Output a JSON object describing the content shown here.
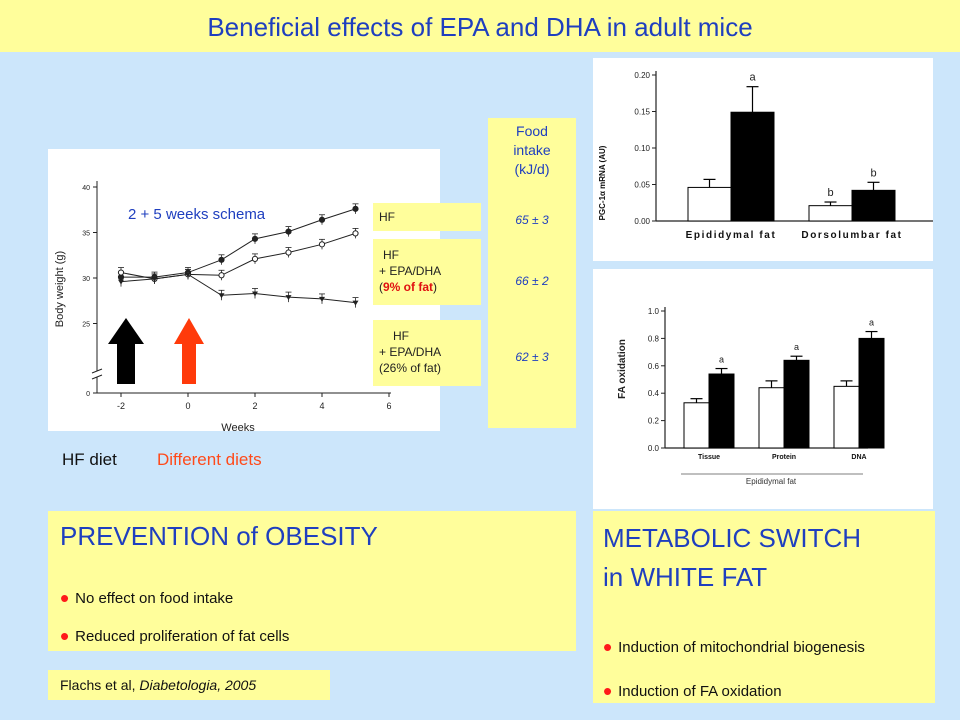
{
  "title": "Beneficial effects of  EPA and DHA in adult mice",
  "weight_chart": {
    "schema_label": "2 + 5 weeks schema",
    "ylabel": "Body weight (g)",
    "xlabel": "Weeks",
    "yticks": [
      "40",
      "35",
      "30",
      "25",
      "0"
    ],
    "xticks": [
      "-2",
      "0",
      "2",
      "4",
      "6"
    ]
  },
  "groups": {
    "hf": "HF",
    "epa9_hf": "HF",
    "epa9_line": "+ EPA/DHA",
    "epa9_pct": "9% of fat",
    "epa26_hf": "HF",
    "epa26_line": "+ EPA/DHA",
    "epa26_pct": "(26% of fat)"
  },
  "food": {
    "label1": "Food",
    "label2": "intake",
    "label3": "(kJ/d)",
    "v1": "65 ± 3",
    "v2": "66 ± 2",
    "v3": "62 ± 3"
  },
  "arrows": {
    "hf_diet": "HF diet",
    "different_diets": "Different diets"
  },
  "pgc_chart": {
    "ylabel": "PGC-1α mRNA (AU)",
    "yticks": [
      "0.20",
      "0.15",
      "0.10",
      "0.05",
      "0.00"
    ],
    "xlabels": [
      "Epididymal fat",
      "Dorsolumbar fat"
    ],
    "sig": [
      "a",
      "b",
      "b"
    ]
  },
  "fa_chart": {
    "ylabel": "FA oxidation",
    "yticks": [
      "1.0",
      "0.8",
      "0.6",
      "0.4",
      "0.2",
      "0.0"
    ],
    "xlabels": [
      "Tissue",
      "Protein",
      "DNA"
    ],
    "sig": [
      "a",
      "a",
      "a"
    ],
    "group_label": "Epididymal fat"
  },
  "prevention": {
    "title": "PREVENTION of OBESITY",
    "b1": "No effect on food intake",
    "b2": "Reduced proliferation of fat cells"
  },
  "metabolic": {
    "title1": "METABOLIC SWITCH",
    "title2": "in WHITE FAT",
    "b1": "Induction of mitochondrial biogenesis",
    "b2": "Induction of FA oxidation"
  },
  "citation": {
    "authors": "Flachs et al, ",
    "journal": "Diabetologia, 2005"
  },
  "chart_data": [
    {
      "type": "line",
      "xlabel": "Weeks",
      "ylabel": "Body weight (g)",
      "xlim": [
        -3,
        6
      ],
      "ylim": [
        25,
        40
      ],
      "series": [
        {
          "x": [
            -2,
            -1,
            0,
            1,
            2,
            3,
            4,
            5
          ],
          "values": [
            30.1,
            30.1,
            30.6,
            32.0,
            34.3,
            35.1,
            36.4,
            37.6
          ]
        },
        {
          "x": [
            -2,
            -1,
            0,
            1,
            2,
            3,
            4,
            5
          ],
          "values": [
            30.6,
            29.9,
            30.4,
            30.3,
            32.1,
            32.8,
            33.7,
            34.9
          ]
        },
        {
          "x": [
            -2,
            -1,
            0,
            1,
            2,
            3,
            4,
            5
          ],
          "values": [
            29.6,
            29.9,
            30.4,
            28.1,
            28.3,
            27.9,
            27.7,
            27.3
          ]
        }
      ]
    },
    {
      "type": "bar",
      "ylabel": "PGC-1α mRNA (AU)",
      "ylim": [
        0,
        0.2
      ],
      "categories": [
        "Epididymal fat",
        "Dorsolumbar fat"
      ],
      "series": [
        {
          "values": [
            0.046,
            0.021
          ],
          "errors": [
            0.011,
            0.005
          ]
        },
        {
          "values": [
            0.149,
            0.042
          ],
          "errors": [
            0.035,
            0.011
          ]
        }
      ]
    },
    {
      "type": "bar",
      "ylabel": "FA oxidation",
      "ylim": [
        0,
        1.0
      ],
      "categories": [
        "Tissue",
        "Protein",
        "DNA"
      ],
      "series": [
        {
          "values": [
            0.33,
            0.44,
            0.45
          ],
          "errors": [
            0.03,
            0.05,
            0.04
          ]
        },
        {
          "values": [
            0.54,
            0.64,
            0.8
          ],
          "errors": [
            0.04,
            0.03,
            0.05
          ]
        }
      ]
    }
  ]
}
